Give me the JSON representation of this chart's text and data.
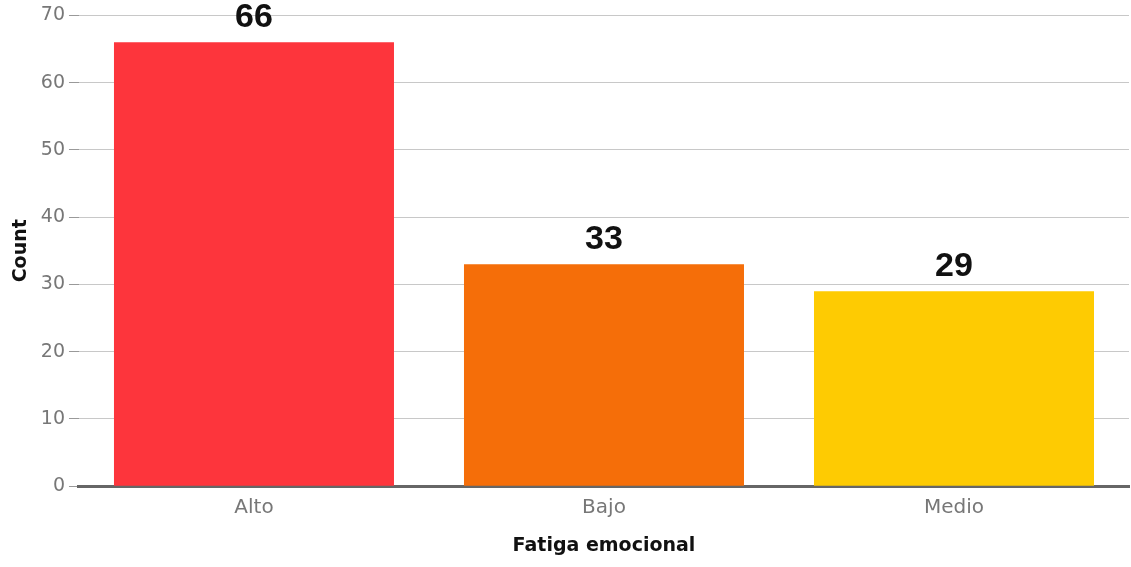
{
  "chart_data": {
    "type": "bar",
    "xlabel": "Fatiga emocional",
    "ylabel": "Count",
    "categories": [
      "Alto",
      "Bajo",
      "Medio"
    ],
    "values": [
      66,
      33,
      29
    ],
    "colors": [
      "#fd353c",
      "#f56e09",
      "#fecb02"
    ],
    "ylim": [
      0,
      70
    ],
    "yticks": [
      0,
      10,
      20,
      30,
      40,
      50,
      60,
      70
    ],
    "grid": "y",
    "data_labels": true
  }
}
